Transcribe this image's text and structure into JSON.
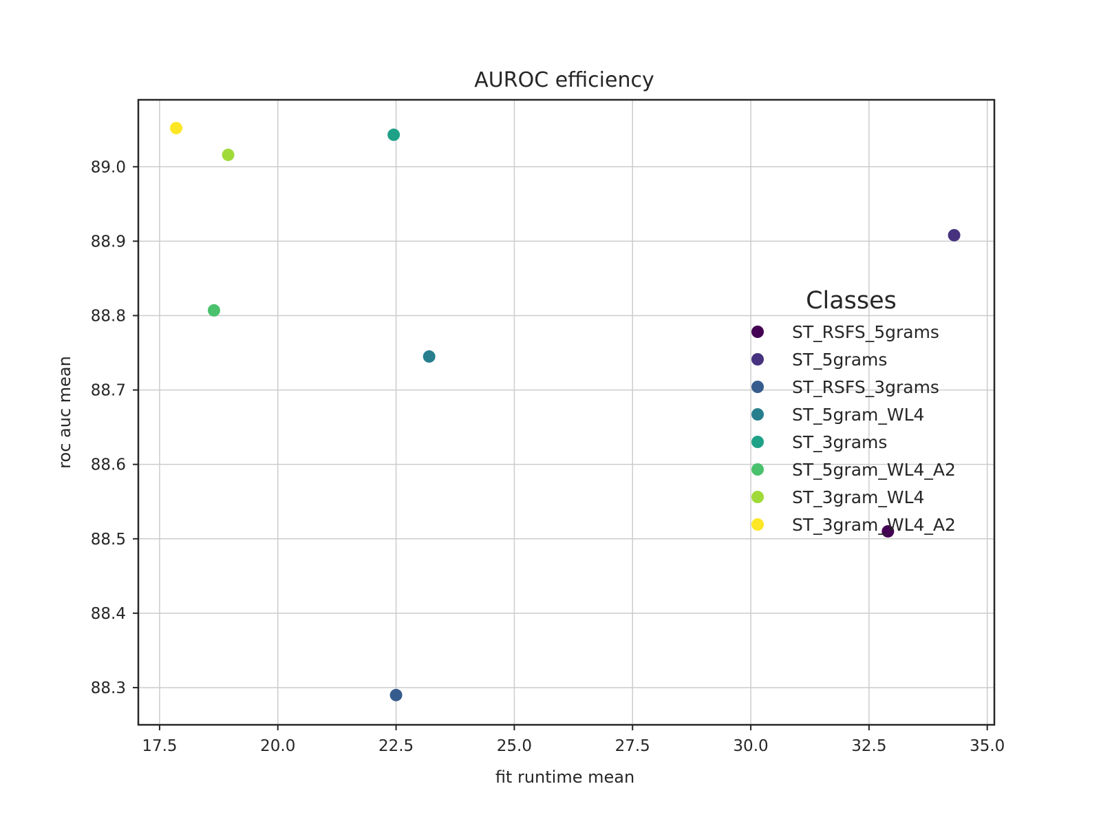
{
  "chart_data": {
    "type": "scatter",
    "title": "AUROC efficiency",
    "xlabel": "fit runtime mean",
    "ylabel": "roc auc mean",
    "xlim": [
      17.05,
      35.15
    ],
    "ylim": [
      88.25,
      89.09
    ],
    "xticks": [
      "17.5",
      "20.0",
      "22.5",
      "25.0",
      "27.5",
      "30.0",
      "32.5",
      "35.0"
    ],
    "yticks": [
      "88.3",
      "88.4",
      "88.5",
      "88.6",
      "88.7",
      "88.8",
      "88.9",
      "89.0"
    ],
    "grid": true,
    "legend": {
      "title": "Classes",
      "placement": "center-right"
    },
    "series": [
      {
        "name": "ST_RSFS_5grams",
        "color": "#440154",
        "x": 32.9,
        "y": 88.51
      },
      {
        "name": "ST_5grams",
        "color": "#46327e",
        "x": 34.3,
        "y": 88.908
      },
      {
        "name": "ST_RSFS_3grams",
        "color": "#365c8d",
        "x": 22.5,
        "y": 88.29
      },
      {
        "name": "ST_5gram_WL4",
        "color": "#277f8e",
        "x": 23.2,
        "y": 88.745
      },
      {
        "name": "ST_3grams",
        "color": "#1fa187",
        "x": 22.45,
        "y": 89.043
      },
      {
        "name": "ST_5gram_WL4_A2",
        "color": "#4ac16d",
        "x": 18.65,
        "y": 88.807
      },
      {
        "name": "ST_3gram_WL4",
        "color": "#a0da39",
        "x": 18.95,
        "y": 89.016
      },
      {
        "name": "ST_3gram_WL4_A2",
        "color": "#fde725",
        "x": 17.85,
        "y": 89.052
      }
    ]
  }
}
